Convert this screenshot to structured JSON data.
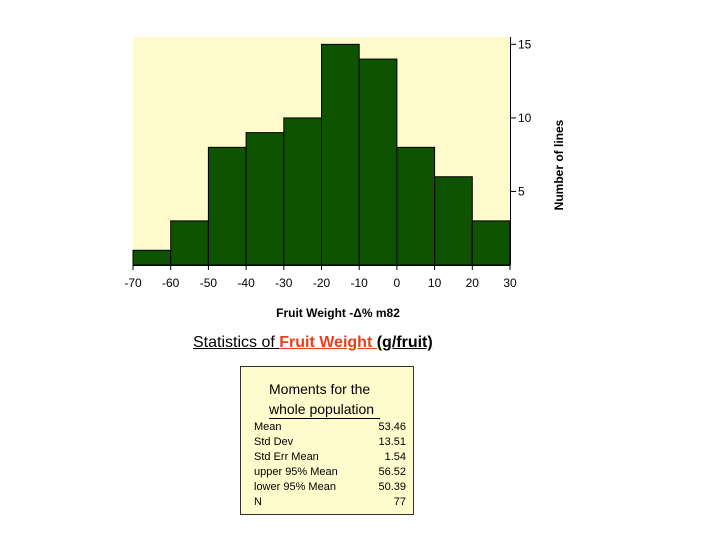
{
  "chart_data": {
    "type": "bar",
    "bin_edges": [
      -70,
      -60,
      -50,
      -40,
      -30,
      -20,
      -10,
      0,
      10,
      20,
      30
    ],
    "values": [
      1,
      3,
      8,
      9,
      10,
      15,
      14,
      8,
      6,
      3
    ],
    "x_ticks": [
      "-70",
      "-60",
      "-50",
      "-40",
      "-30",
      "-20",
      "-10",
      "0",
      "10",
      "20",
      "30"
    ],
    "y_ticks": [
      "5",
      "10",
      "15"
    ],
    "xlabel": "Fruit Weight -Δ% m82",
    "ylabel": "Number of lines",
    "xlim": [
      -70,
      30
    ],
    "ylim": [
      0,
      15.5
    ],
    "grid": false,
    "y_axis_side": "right",
    "colors": {
      "bar": "#0d5300",
      "plot_bg": "#fffacc",
      "bar_edge": "#000000"
    }
  },
  "stats": {
    "title_prefix": "Statistics of ",
    "title_highlight": "Fruit Weight ",
    "title_suffix": "(g/fruit)",
    "highlight_color": "#e8401c",
    "moments_heading_line1": "Moments for the",
    "moments_heading_line2": "whole population",
    "rows": [
      {
        "label": "Mean",
        "value": "53.46"
      },
      {
        "label": "Std Dev",
        "value": "13.51"
      },
      {
        "label": "Std Err Mean",
        "value": "1.54"
      },
      {
        "label": "upper 95% Mean",
        "value": "56.52"
      },
      {
        "label": "lower 95% Mean",
        "value": "50.39"
      },
      {
        "label": "N",
        "value": "77"
      }
    ]
  }
}
